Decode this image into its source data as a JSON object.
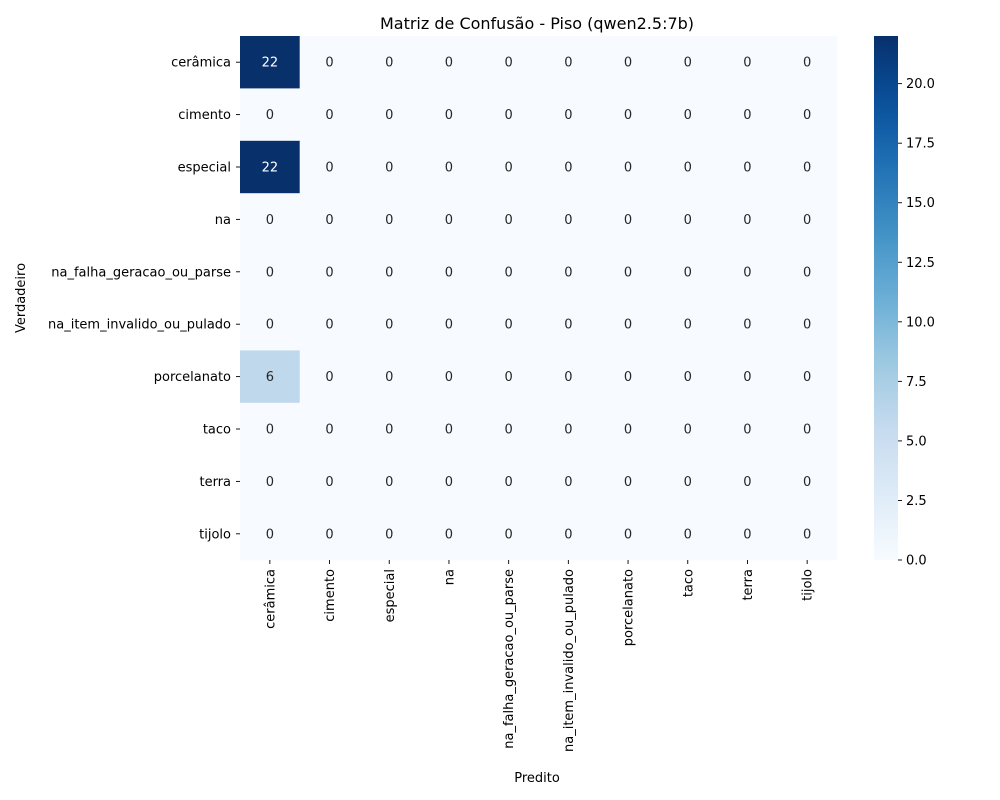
{
  "chart_data": {
    "type": "heatmap",
    "title": "Matriz de Confusão - Piso (qwen2.5:7b)",
    "xlabel": "Predito",
    "ylabel": "Verdadeiro",
    "x_categories": [
      "cerâmica",
      "cimento",
      "especial",
      "na",
      "na_falha_geracao_ou_parse",
      "na_item_invalido_ou_pulado",
      "porcelanato",
      "taco",
      "terra",
      "tijolo"
    ],
    "y_categories": [
      "cerâmica",
      "cimento",
      "especial",
      "na",
      "na_falha_geracao_ou_parse",
      "na_item_invalido_ou_pulado",
      "porcelanato",
      "taco",
      "terra",
      "tijolo"
    ],
    "values": [
      [
        22,
        0,
        0,
        0,
        0,
        0,
        0,
        0,
        0,
        0
      ],
      [
        0,
        0,
        0,
        0,
        0,
        0,
        0,
        0,
        0,
        0
      ],
      [
        22,
        0,
        0,
        0,
        0,
        0,
        0,
        0,
        0,
        0
      ],
      [
        0,
        0,
        0,
        0,
        0,
        0,
        0,
        0,
        0,
        0
      ],
      [
        0,
        0,
        0,
        0,
        0,
        0,
        0,
        0,
        0,
        0
      ],
      [
        0,
        0,
        0,
        0,
        0,
        0,
        0,
        0,
        0,
        0
      ],
      [
        6,
        0,
        0,
        0,
        0,
        0,
        0,
        0,
        0,
        0
      ],
      [
        0,
        0,
        0,
        0,
        0,
        0,
        0,
        0,
        0,
        0
      ],
      [
        0,
        0,
        0,
        0,
        0,
        0,
        0,
        0,
        0,
        0
      ],
      [
        0,
        0,
        0,
        0,
        0,
        0,
        0,
        0,
        0,
        0
      ]
    ],
    "colorbar": {
      "colormap": "Blues",
      "min": 0,
      "max": 22,
      "ticks": [
        "0.0",
        "2.5",
        "5.0",
        "7.5",
        "10.0",
        "12.5",
        "15.0",
        "17.5",
        "20.0"
      ]
    }
  }
}
